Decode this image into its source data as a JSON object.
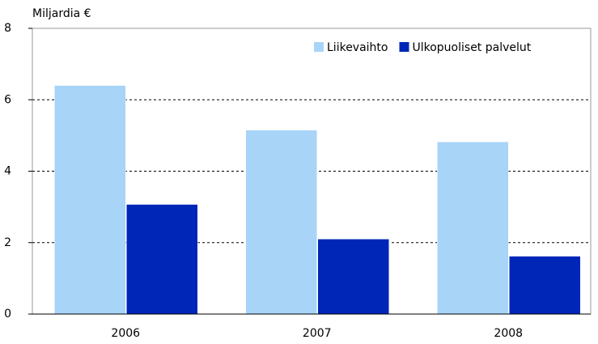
{
  "chart_data": {
    "type": "bar",
    "y_axis_label": "Miljardia €",
    "categories": [
      "2006",
      "2007",
      "2008"
    ],
    "series": [
      {
        "name": "Liikevaihto",
        "color": "#a8d4f8",
        "values": [
          6.4,
          5.15,
          4.82
        ]
      },
      {
        "name": "Ulkopuoliset palvelut",
        "color": "#0026b8",
        "values": [
          3.07,
          2.1,
          1.62
        ]
      }
    ],
    "ylim": [
      0,
      8
    ],
    "yticks": [
      0,
      2,
      4,
      6,
      8
    ],
    "grid": true,
    "legend": "top-right"
  }
}
